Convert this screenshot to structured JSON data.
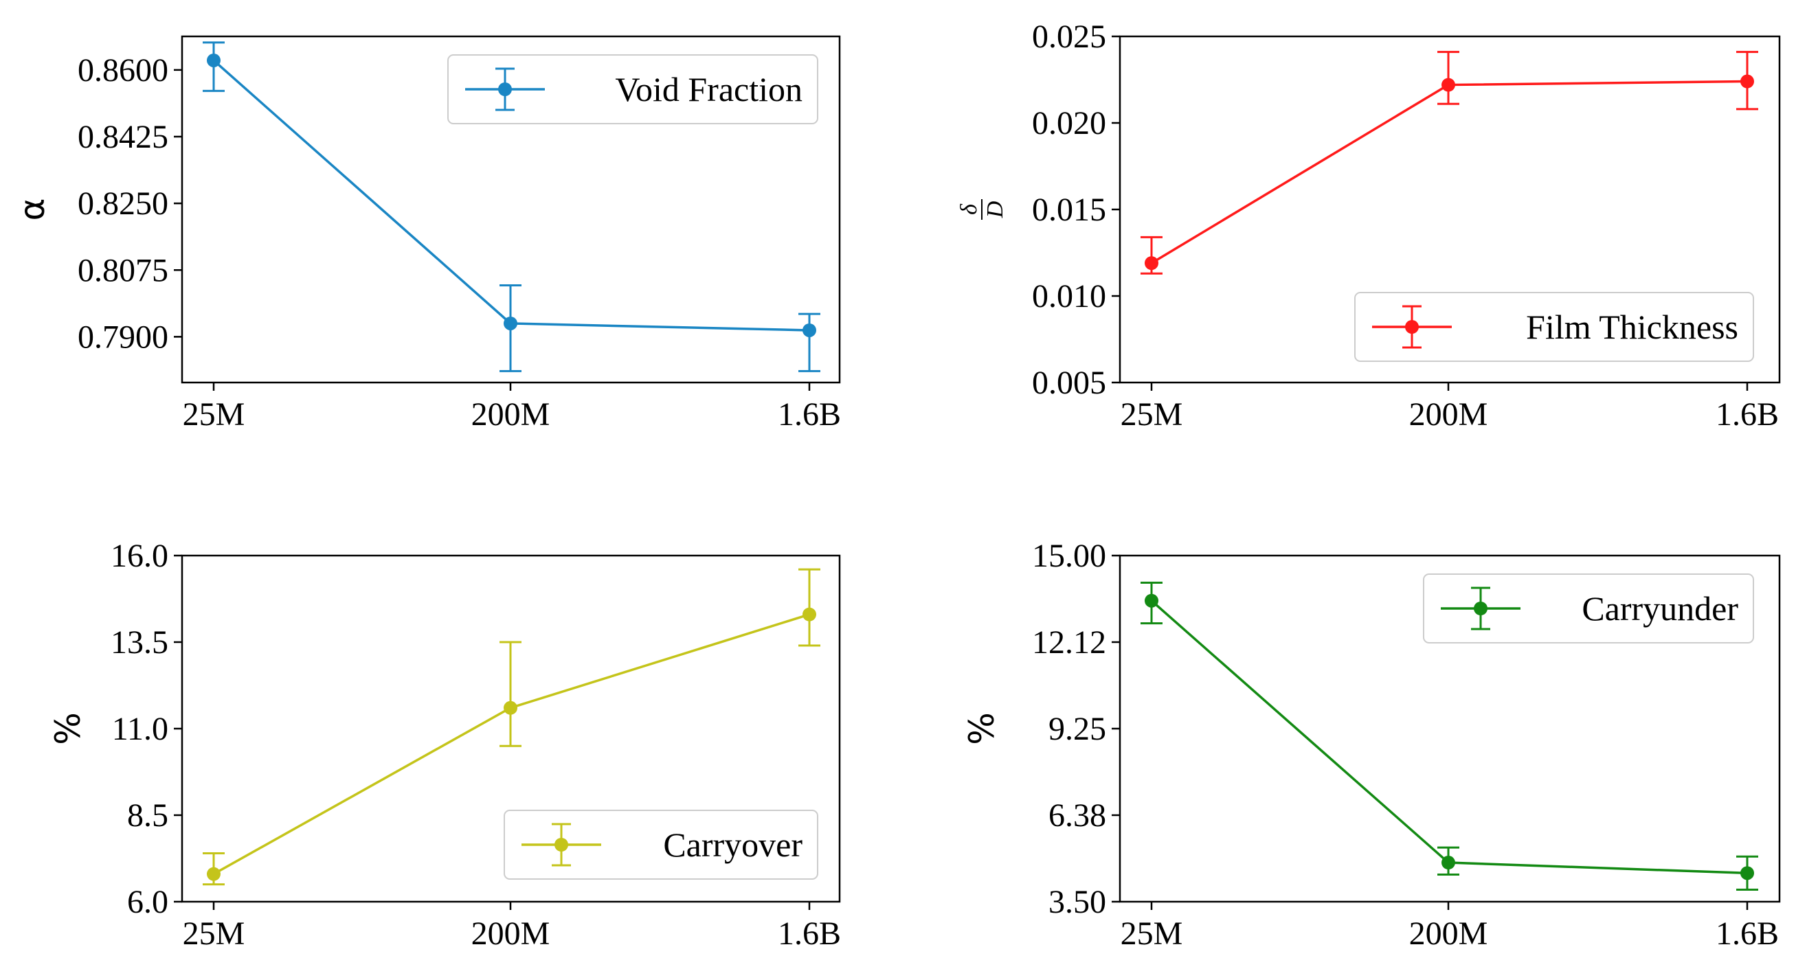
{
  "chart_data": [
    {
      "type": "line",
      "title": "",
      "xlabel": "",
      "ylabel": "α",
      "categories": [
        "25M",
        "200M",
        "1.6B"
      ],
      "series": [
        {
          "name": "Void Fraction",
          "color": "#1a86c4",
          "values": [
            0.8625,
            0.7935,
            0.7917
          ],
          "err_low": [
            0.8545,
            0.781,
            0.781
          ],
          "err_high": [
            0.8672,
            0.8035,
            0.796
          ]
        }
      ],
      "ylim": [
        0.778,
        0.8688
      ],
      "yticks": [
        "0.8600",
        "0.8425",
        "0.8250",
        "0.8075",
        "0.7900"
      ],
      "ytick_values": [
        0.86,
        0.8425,
        0.825,
        0.8075,
        0.79
      ],
      "legend": {
        "label": "Void Fraction",
        "position": "top-right"
      }
    },
    {
      "type": "line",
      "title": "",
      "xlabel": "",
      "ylabel": "δ/D",
      "ylabel_num": "δ",
      "ylabel_den": "D",
      "categories": [
        "25M",
        "200M",
        "1.6B"
      ],
      "series": [
        {
          "name": "Film Thickness",
          "color": "#ff1a1a",
          "values": [
            0.0119,
            0.0222,
            0.0224
          ],
          "err_low": [
            0.0113,
            0.0211,
            0.0208
          ],
          "err_high": [
            0.0134,
            0.0241,
            0.0241
          ]
        }
      ],
      "ylim": [
        0.005,
        0.025
      ],
      "yticks": [
        "0.025",
        "0.020",
        "0.015",
        "0.010",
        "0.005"
      ],
      "ytick_values": [
        0.025,
        0.02,
        0.015,
        0.01,
        0.005
      ],
      "legend": {
        "label": "Film Thickness",
        "position": "lower-right"
      }
    },
    {
      "type": "line",
      "title": "",
      "xlabel": "",
      "ylabel": "%",
      "categories": [
        "25M",
        "200M",
        "1.6B"
      ],
      "series": [
        {
          "name": "Carryover",
          "color": "#c4c41a",
          "values": [
            6.8,
            11.6,
            14.3
          ],
          "err_low": [
            6.5,
            10.5,
            13.4
          ],
          "err_high": [
            7.4,
            13.5,
            15.6
          ]
        }
      ],
      "ylim": [
        6.0,
        16.0
      ],
      "yticks": [
        "16.0",
        "13.5",
        "11.0",
        "8.5",
        "6.0"
      ],
      "ytick_values": [
        16.0,
        13.5,
        11.0,
        8.5,
        6.0
      ],
      "legend": {
        "label": "Carryover",
        "position": "lower-right"
      }
    },
    {
      "type": "line",
      "title": "",
      "xlabel": "",
      "ylabel": "%",
      "categories": [
        "25M",
        "200M",
        "1.6B"
      ],
      "series": [
        {
          "name": "Carryunder",
          "color": "#138a13",
          "values": [
            13.5,
            4.8,
            4.45
          ],
          "err_low": [
            12.75,
            4.4,
            3.9
          ],
          "err_high": [
            14.1,
            5.3,
            5.0
          ]
        }
      ],
      "ylim": [
        3.5,
        15.0
      ],
      "yticks": [
        "15.00",
        "12.12",
        "9.25",
        "6.38",
        "3.50"
      ],
      "ytick_values": [
        15.0,
        12.125,
        9.25,
        6.375,
        3.5
      ],
      "legend": {
        "label": "Carryunder",
        "position": "top-right"
      }
    }
  ]
}
